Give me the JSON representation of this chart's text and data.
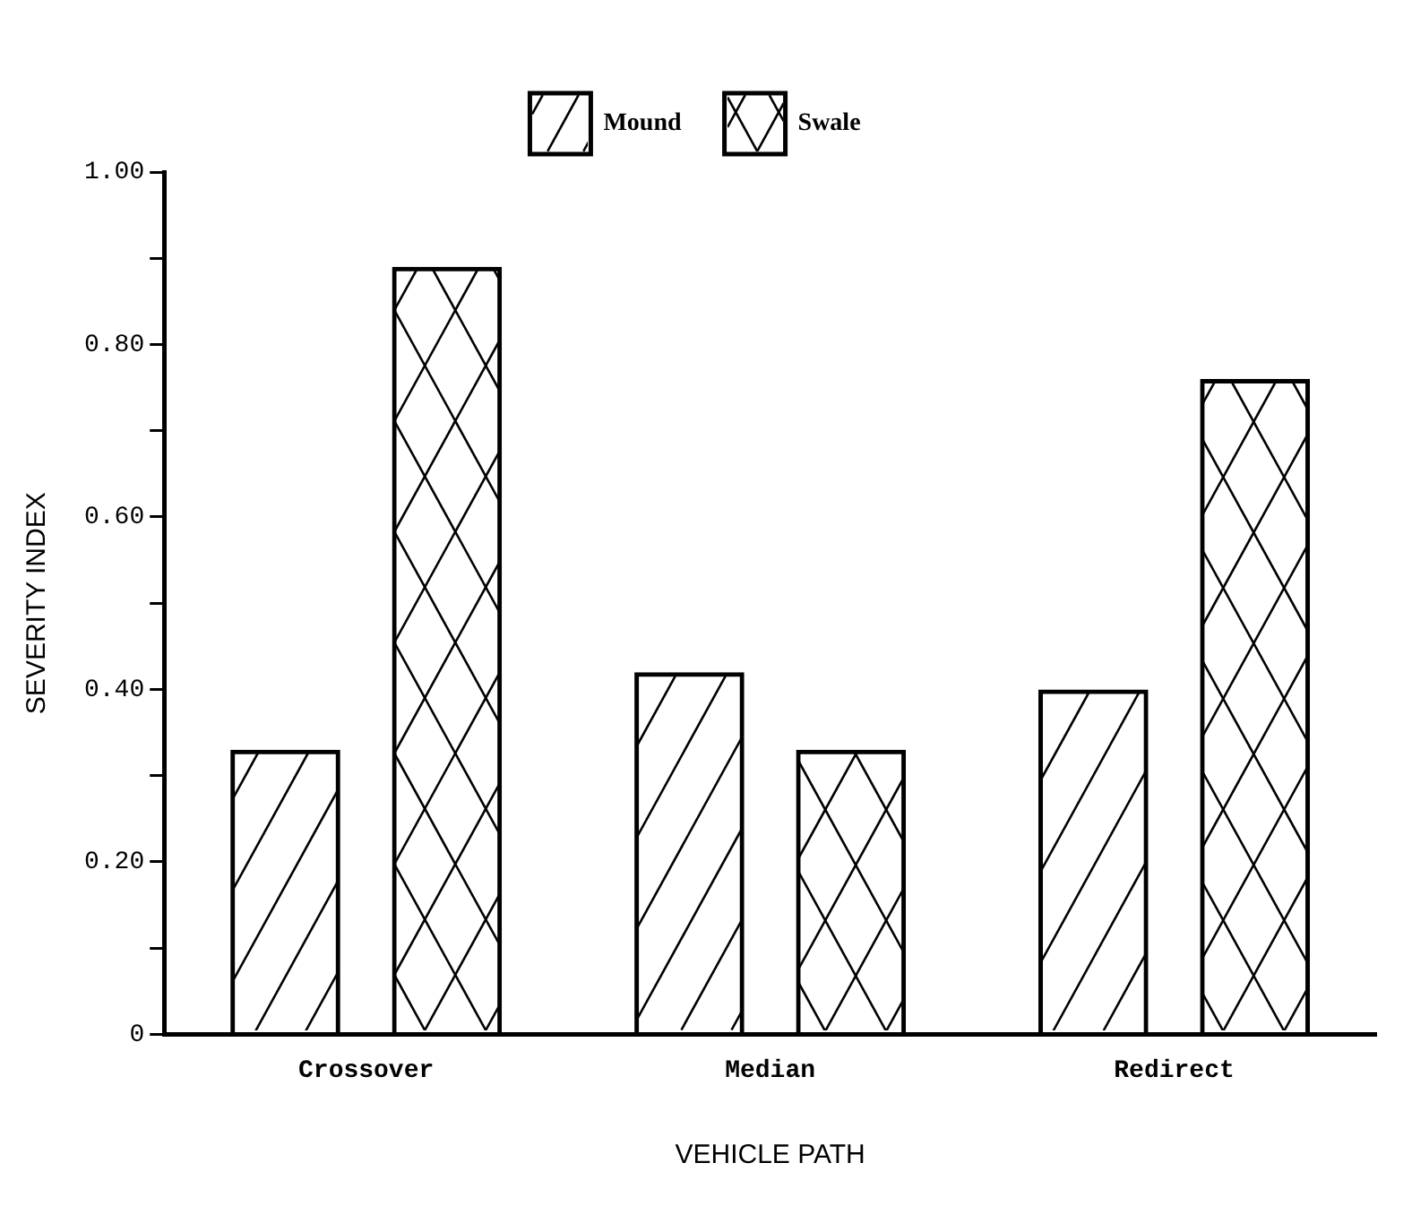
{
  "chart_data": {
    "type": "bar",
    "xlabel": "VEHICLE PATH",
    "ylabel": "SEVERITY INDEX",
    "categories": [
      "Crossover",
      "Median",
      "Redirect"
    ],
    "series": [
      {
        "name": "Mound",
        "color": "#000000",
        "values": [
          0.33,
          0.42,
          0.4
        ]
      },
      {
        "name": "Swale",
        "color": "#000000",
        "values": [
          0.89,
          0.33,
          0.76
        ]
      }
    ],
    "ylim": [
      0,
      1
    ],
    "yticks": [
      {
        "value": 0,
        "label": "0"
      },
      {
        "value": 0.1,
        "label": null
      },
      {
        "value": 0.2,
        "label": "0.20"
      },
      {
        "value": 0.3,
        "label": null
      },
      {
        "value": 0.4,
        "label": "0.40"
      },
      {
        "value": 0.5,
        "label": null
      },
      {
        "value": 0.6,
        "label": "0.60"
      },
      {
        "value": 0.7,
        "label": null
      },
      {
        "value": 0.8,
        "label": "0.80"
      },
      {
        "value": 0.9,
        "label": null
      },
      {
        "value": 1,
        "label": "1.00"
      }
    ],
    "grid": false,
    "legend": "top"
  }
}
